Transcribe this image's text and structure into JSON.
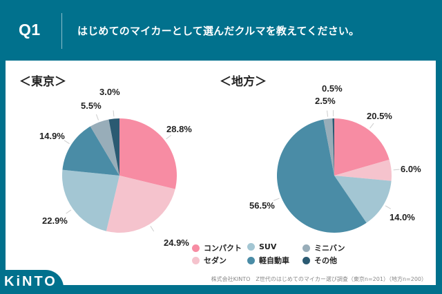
{
  "header": {
    "question_label": "Q1",
    "question_text": "はじめてのマイカーとして選んだクルマを教えてください。"
  },
  "footer": {
    "logo": "KiNTO",
    "source": "株式会社KINTO　Z世代のはじめてのマイカー選び調査（東京n=201）（地方n=200）"
  },
  "colors": {
    "header_bg": "#01718d",
    "compact": "#f78ca3",
    "sedan": "#f5c3cd",
    "suv": "#a3c6d3",
    "kei": "#4a8ca6",
    "minivan": "#98adb9",
    "other": "#2b5a72"
  },
  "chart_data": [
    {
      "type": "pie",
      "title": "＜東京＞",
      "categories": [
        "コンパクト",
        "セダン",
        "SUV",
        "軽自動車",
        "ミニバン",
        "その他"
      ],
      "values": [
        28.8,
        24.9,
        22.9,
        14.9,
        5.5,
        3.0
      ],
      "labels": [
        "28.8%",
        "24.9%",
        "22.9%",
        "14.9%",
        "5.5%",
        "3.0%"
      ]
    },
    {
      "type": "pie",
      "title": "＜地方＞",
      "categories": [
        "コンパクト",
        "セダン",
        "SUV",
        "軽自動車",
        "ミニバン",
        "その他"
      ],
      "values": [
        20.5,
        6.0,
        14.0,
        56.5,
        2.5,
        0.5
      ],
      "labels": [
        "20.5%",
        "6.0%",
        "14.0%",
        "56.5%",
        "2.5%",
        "0.5%"
      ]
    }
  ],
  "legend": [
    {
      "label": "コンパクト",
      "key": "compact"
    },
    {
      "label": "SUV",
      "key": "suv"
    },
    {
      "label": "ミニバン",
      "key": "minivan"
    },
    {
      "label": "セダン",
      "key": "sedan"
    },
    {
      "label": "軽自動車",
      "key": "kei"
    },
    {
      "label": "その他",
      "key": "other"
    }
  ]
}
